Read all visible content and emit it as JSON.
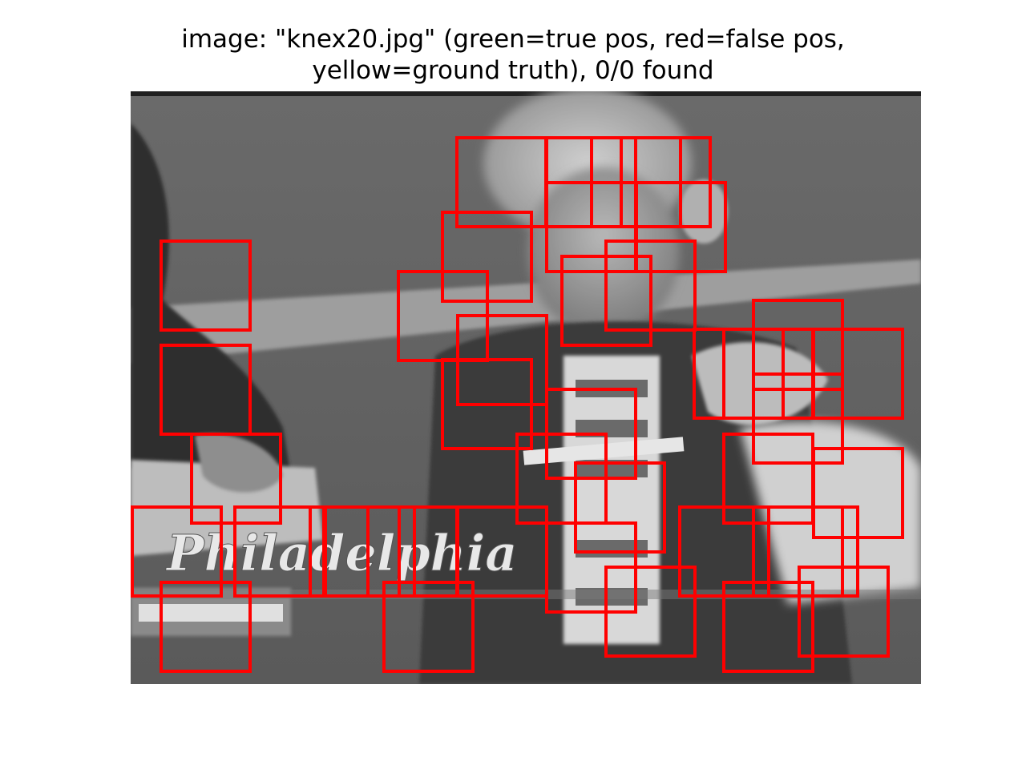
{
  "figure": {
    "title_line1": "image: \"knex20.jpg\" (green=true pos, red=false pos,",
    "title_line2": "yellow=ground truth), 0/0 found"
  },
  "legend_colors": {
    "true_positive": "#00c000",
    "false_positive": "#ff0000",
    "ground_truth": "#ffff00"
  },
  "scene_text": {
    "caption": "Philadelphia"
  },
  "detections": {
    "count": 38,
    "label": "false-positive"
  }
}
